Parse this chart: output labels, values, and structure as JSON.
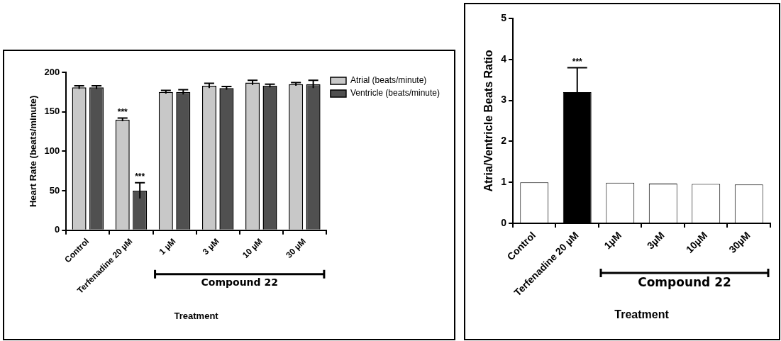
{
  "chart_data": [
    {
      "type": "bar",
      "ylabel": "Heart Rate (beats/minute)",
      "xlabel": "Treatment",
      "categories": [
        "Control",
        "Terfenadine 20 µM",
        "1 µM",
        "3 µM",
        "10 µM",
        "30 µM"
      ],
      "series": [
        {
          "name": "Atrial (beats/minute)",
          "color": "#c8c8c8",
          "values": [
            181,
            140,
            175,
            183,
            187,
            185
          ],
          "errors": [
            2,
            2,
            2,
            3,
            3,
            2
          ]
        },
        {
          "name": "Ventricle (beats/minute)",
          "color": "#505050",
          "values": [
            181,
            50,
            175,
            180,
            183,
            185
          ],
          "errors": [
            2,
            10,
            3,
            2,
            2,
            5
          ]
        }
      ],
      "ylim": [
        0,
        200
      ],
      "yticks": [
        0,
        50,
        100,
        150,
        200
      ],
      "grid": false,
      "legend": "top right",
      "annotations": [
        {
          "text": "***",
          "x": "Terfenadine 20 µM",
          "y": 140
        },
        {
          "text": "***",
          "x": "Terfenadine 20 µM",
          "y": 60
        },
        "Compound 22"
      ]
    },
    {
      "type": "bar",
      "ylabel": "Atria/Ventricle Beats Ratio",
      "xlabel": "Treatment",
      "categories": [
        "Control",
        "Terfenadine 20 µM",
        "1µM",
        "3µM",
        "10µM",
        "30µM"
      ],
      "values": [
        1,
        3.2,
        0.99,
        0.97,
        0.96,
        0.95
      ],
      "colors": [
        "#ffffff",
        "#000000",
        "#ffffff",
        "#ffffff",
        "#ffffff",
        "#ffffff"
      ],
      "errors": [
        null,
        0.6,
        null,
        null,
        null,
        null
      ],
      "ylim": [
        0,
        5
      ],
      "yticks": [
        0,
        1,
        2,
        3,
        4,
        5
      ],
      "grid": false,
      "annotations": [
        {
          "text": "***",
          "x": "Terfenadine 20 µM",
          "y": 3.8
        },
        "Compound 22"
      ]
    }
  ]
}
